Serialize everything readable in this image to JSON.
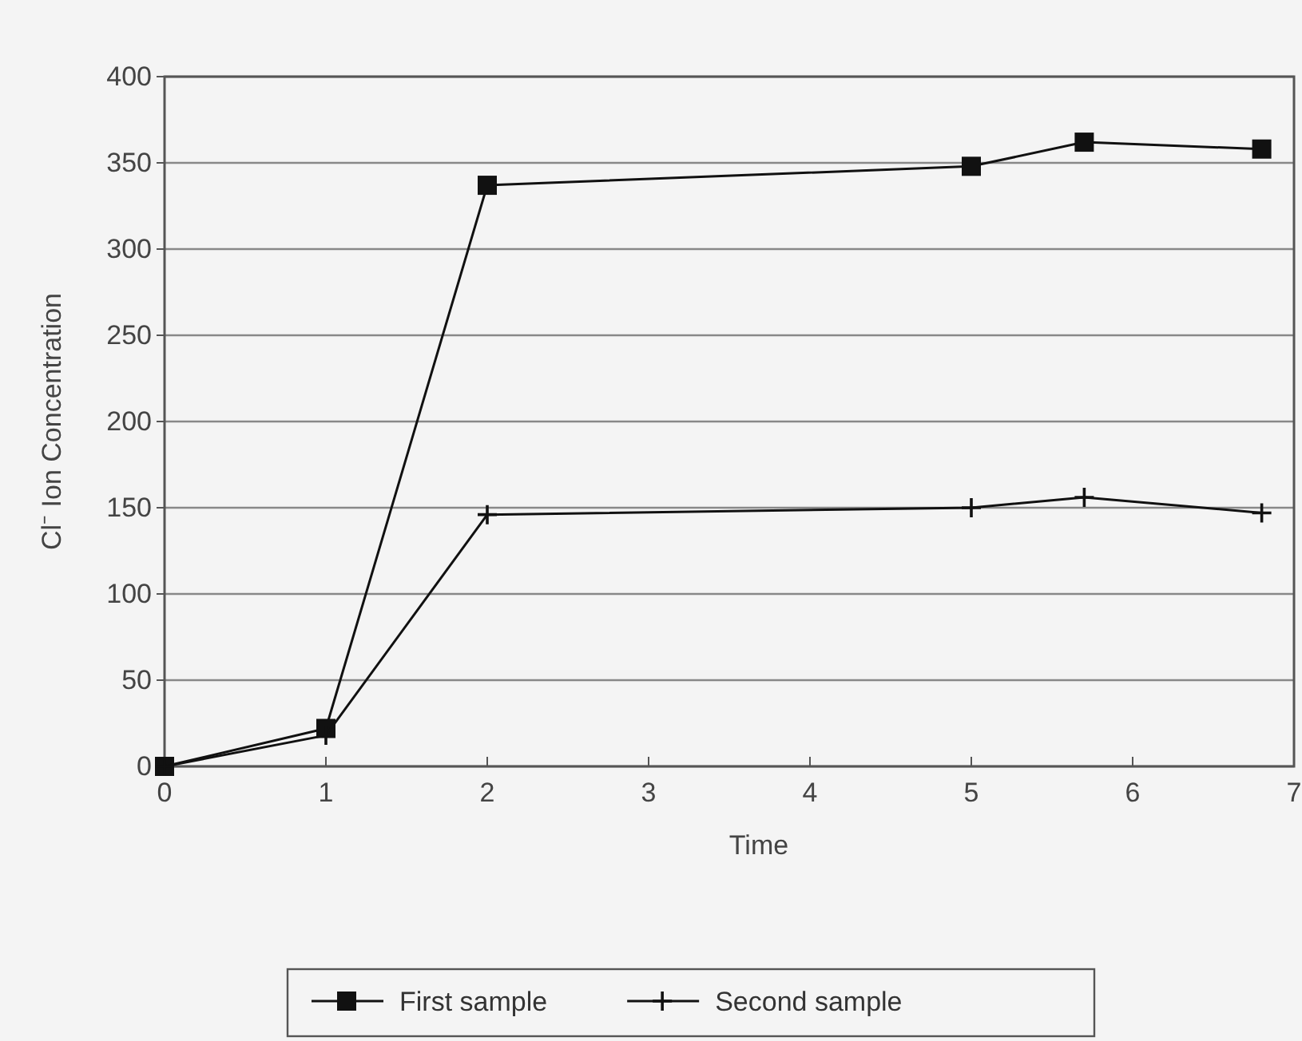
{
  "chart_data": {
    "type": "line",
    "xlabel": "Time",
    "ylabel": "Cl⁻ Ion Concentration",
    "xlim": [
      0,
      7
    ],
    "xticks": [
      0,
      1,
      2,
      3,
      4,
      5,
      6,
      7
    ],
    "ylim": [
      0,
      400
    ],
    "yticks": [
      0,
      50,
      100,
      150,
      200,
      250,
      300,
      350,
      400
    ],
    "grid": "y",
    "legend": "bottom",
    "line_style": "solid",
    "series": [
      {
        "name": "First sample",
        "color": "#111111",
        "marker": "square",
        "x": [
          0,
          1,
          2,
          5,
          5.7,
          6.8
        ],
        "values": [
          0,
          22,
          337,
          348,
          362,
          358
        ]
      },
      {
        "name": "Second sample",
        "color": "#111111",
        "marker": "cross",
        "x": [
          0,
          1,
          2,
          5,
          5.7,
          6.8
        ],
        "values": [
          0,
          18,
          146,
          150,
          156,
          147
        ]
      }
    ]
  }
}
